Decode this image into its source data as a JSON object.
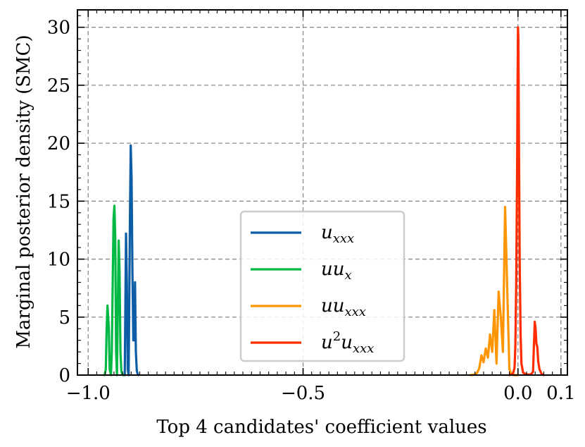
{
  "chart_data": {
    "type": "line",
    "title": "",
    "xlabel": "Top 4 candidates' coefficient values",
    "ylabel": "Marginal posterior density (SMC)",
    "xlim": [
      -1.025,
      0.115
    ],
    "ylim": [
      0,
      31.5
    ],
    "xticks": [
      -1.0,
      -0.5,
      0.0,
      0.1
    ],
    "xtick_labels": [
      "−1.0",
      "−0.5",
      "0.0",
      "0.1"
    ],
    "yticks": [
      0,
      5,
      10,
      15,
      20,
      25,
      30
    ],
    "ytick_labels": [
      "0",
      "5",
      "10",
      "15",
      "20",
      "25",
      "30"
    ],
    "grid": true,
    "legend_position": "bottom-center",
    "series": [
      {
        "name": "u_xxx",
        "legend": {
          "base": "u",
          "sub": "xxx"
        },
        "color": "#0C5DA5",
        "x": [
          -0.915,
          -0.913,
          -0.912,
          -0.91,
          -0.908,
          -0.906,
          -0.905,
          -0.903,
          -0.901,
          -0.899,
          -0.897,
          -0.895,
          -0.893,
          -0.891,
          -0.889,
          -0.887,
          -0.885,
          -0.883
        ],
        "y": [
          0,
          8,
          12.2,
          8,
          0.5,
          0,
          4,
          13,
          19.8,
          17,
          9,
          3,
          3,
          8,
          2,
          0.4,
          0.1,
          0
        ]
      },
      {
        "name": "uu_x",
        "legend": {
          "base": "uu",
          "sub": "x"
        },
        "color": "#00B945",
        "x": [
          -0.962,
          -0.959,
          -0.957,
          -0.955,
          -0.952,
          -0.95,
          -0.947,
          -0.945,
          -0.943,
          -0.941,
          -0.939,
          -0.937,
          -0.935,
          -0.933,
          -0.931,
          -0.929,
          -0.927,
          -0.925,
          -0.923,
          -0.921,
          -0.919,
          -0.917
        ],
        "y": [
          0,
          0.5,
          4,
          6,
          4,
          0.5,
          0,
          2,
          8,
          13.5,
          14.6,
          12,
          2,
          0,
          6,
          11.6,
          9,
          2,
          0.4,
          0.1,
          0,
          0
        ]
      },
      {
        "name": "uu_xxx",
        "legend": {
          "base": "uu",
          "sub": "xxx"
        },
        "color": "#FF9500",
        "x": [
          -0.11,
          -0.1,
          -0.095,
          -0.09,
          -0.085,
          -0.08,
          -0.075,
          -0.07,
          -0.065,
          -0.06,
          -0.055,
          -0.05,
          -0.045,
          -0.04,
          -0.035,
          -0.03,
          -0.025,
          -0.02,
          -0.015,
          -0.01,
          -0.005,
          0.0
        ],
        "y": [
          0,
          0.05,
          0.2,
          0.6,
          1.7,
          1.1,
          2.3,
          1.5,
          3.5,
          2.0,
          5.6,
          1.0,
          7.2,
          5.0,
          2.0,
          14.5,
          7.5,
          0.5,
          0.05,
          0,
          0,
          0
        ]
      },
      {
        "name": "u^2u_xxx",
        "legend": {
          "base": "u",
          "sup": "2",
          "base2": "u",
          "sub": "xxx"
        },
        "color": "#FF2C00",
        "x": [
          -0.02,
          -0.012,
          -0.008,
          -0.006,
          -0.004,
          -0.002,
          -0.001,
          0.0,
          0.001,
          0.002,
          0.004,
          0.006,
          0.008,
          0.012,
          0.02,
          0.03,
          0.035,
          0.037,
          0.039,
          0.041,
          0.043,
          0.045,
          0.047,
          0.05,
          0.055,
          0.06
        ],
        "y": [
          0,
          0.1,
          0.6,
          2.5,
          8,
          18,
          25,
          30,
          29,
          22,
          10,
          3.5,
          1.0,
          0.2,
          0.05,
          0.05,
          0.3,
          2.5,
          4.6,
          4.0,
          2.7,
          2.4,
          1.2,
          0.5,
          0.1,
          0
        ]
      }
    ]
  }
}
